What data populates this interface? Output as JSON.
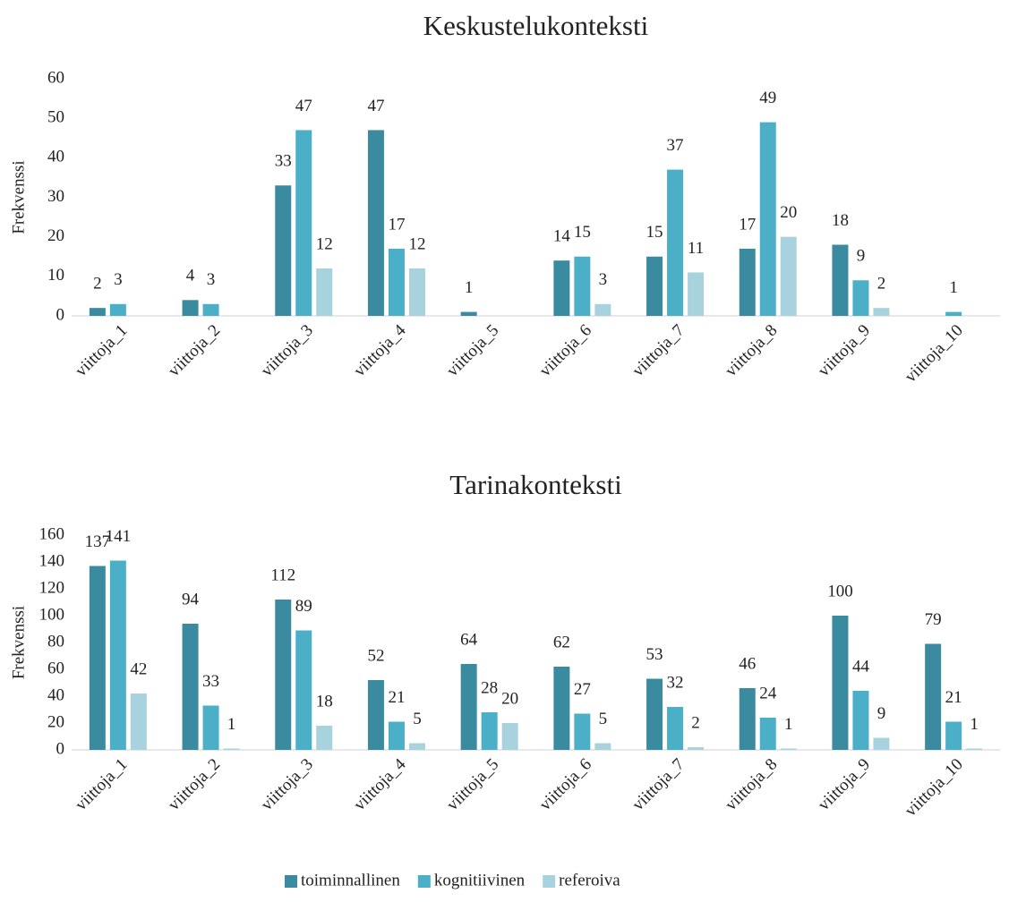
{
  "chart_data": [
    {
      "type": "bar",
      "title": "Keskustelukonteksti",
      "y_label": "Frekvenssi",
      "categories": [
        "viittoja_1",
        "viittoja_2",
        "viittoja_3",
        "viittoja_4",
        "viittoja_5",
        "viittoja_6",
        "viittoja_7",
        "viittoja_8",
        "viittoja_9",
        "viittoja_10"
      ],
      "series": [
        {
          "color": "#3a8aa0",
          "values": [
            2,
            4,
            33,
            47,
            1,
            14,
            15,
            17,
            18,
            null
          ]
        },
        {
          "color": "#4bafc8",
          "values": [
            3,
            3,
            47,
            17,
            null,
            15,
            37,
            49,
            9,
            1
          ]
        },
        {
          "color": "#a8d3de",
          "values": [
            null,
            null,
            12,
            12,
            null,
            3,
            11,
            20,
            2,
            null
          ]
        }
      ],
      "ylim": [
        0,
        60
      ],
      "yticks": [
        0,
        10,
        20,
        30,
        40,
        50,
        60
      ]
    },
    {
      "type": "bar",
      "title": "Tarinakonteksti",
      "y_label": "Frekvenssi",
      "categories": [
        "viittoja_1",
        "viittoja_2",
        "viittoja_3",
        "viittoja_4",
        "viittoja_5",
        "viittoja_6",
        "viittoja_7",
        "viittoja_8",
        "viittoja_9",
        "viittoja_10"
      ],
      "series": [
        {
          "name": "toiminnallinen",
          "color": "#3a8aa0",
          "values": [
            137,
            94,
            112,
            52,
            64,
            62,
            53,
            46,
            100,
            79
          ]
        },
        {
          "name": "kognitiivinen",
          "color": "#4bafc8",
          "values": [
            141,
            33,
            89,
            21,
            28,
            27,
            32,
            24,
            44,
            21
          ]
        },
        {
          "name": "referoiva",
          "color": "#a8d3de",
          "values": [
            42,
            1,
            18,
            5,
            20,
            5,
            2,
            1,
            9,
            1
          ]
        }
      ],
      "ylim": [
        0,
        160
      ],
      "yticks": [
        0,
        20,
        40,
        60,
        80,
        100,
        120,
        140,
        160
      ],
      "legend": "bottom"
    }
  ]
}
